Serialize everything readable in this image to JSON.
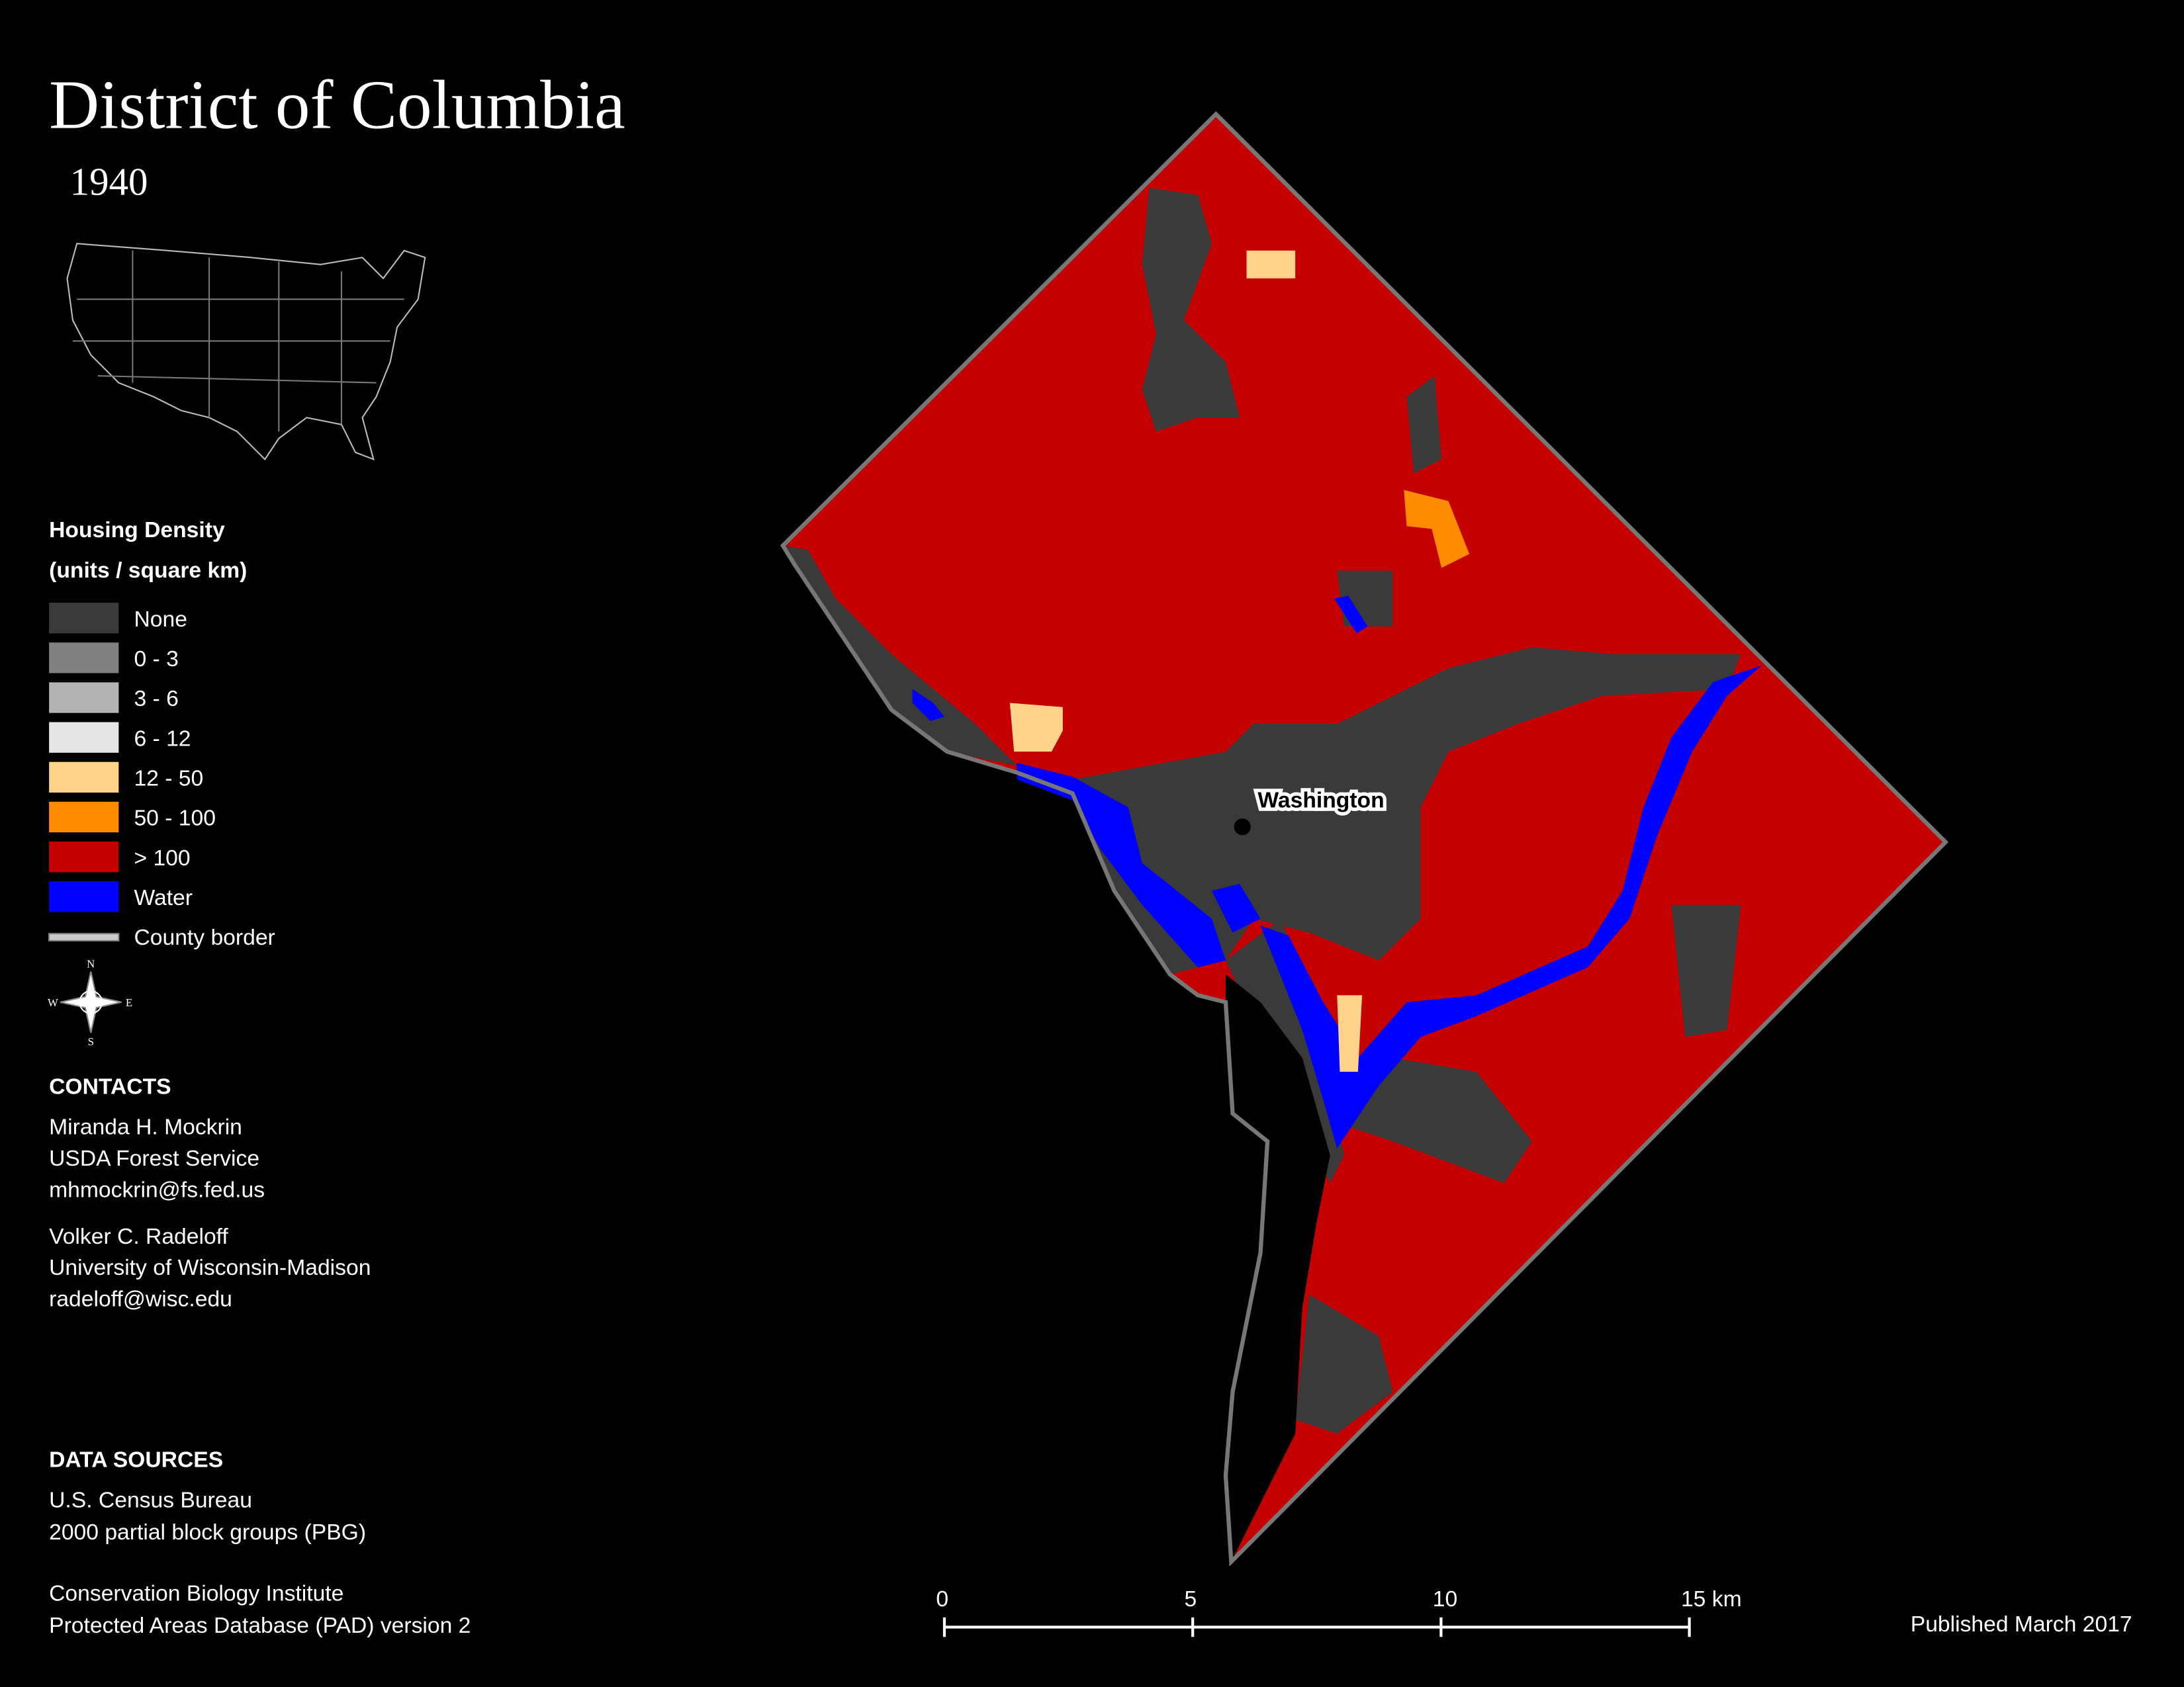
{
  "header": {
    "title": "District of Columbia",
    "subtitle": "1940"
  },
  "legend": {
    "title": "Housing Density",
    "subtitle": "(units / square km)",
    "items": [
      {
        "label": "None",
        "color": "#3a3a3a"
      },
      {
        "label": "0 - 3",
        "color": "#808080"
      },
      {
        "label": "3 - 6",
        "color": "#b3b3b3"
      },
      {
        "label": "6 - 12",
        "color": "#e6e6e6"
      },
      {
        "label": "12 - 50",
        "color": "#ffd38a"
      },
      {
        "label": "50 - 100",
        "color": "#ff8c00"
      },
      {
        "label": "> 100",
        "color": "#c40000"
      },
      {
        "label": "Water",
        "color": "#0000ff"
      },
      {
        "label": "County border",
        "color": "#cccccc"
      }
    ]
  },
  "compass": {
    "n": "N",
    "s": "S",
    "e": "E",
    "w": "W"
  },
  "map": {
    "city_label": "Washington"
  },
  "contacts": {
    "title": "CONTACTS",
    "people": [
      [
        "Miranda H. Mockrin",
        "USDA Forest Service",
        "mhmockrin@fs.fed.us"
      ],
      [
        "Volker C. Radeloff",
        "University of Wisconsin-Madison",
        "radeloff@wisc.edu"
      ]
    ]
  },
  "data_sources": {
    "title": "DATA SOURCES",
    "lines": [
      [
        "U.S. Census Bureau",
        "2000 partial block groups (PBG)"
      ],
      [
        "Conservation Biology Institute",
        "Protected Areas Database (PAD) version 2"
      ]
    ]
  },
  "scale_bar": {
    "ticks": [
      0,
      5,
      10,
      {
        "value": 15,
        "label": "15 km"
      }
    ]
  },
  "footer": {
    "published": "Published March 2017"
  }
}
